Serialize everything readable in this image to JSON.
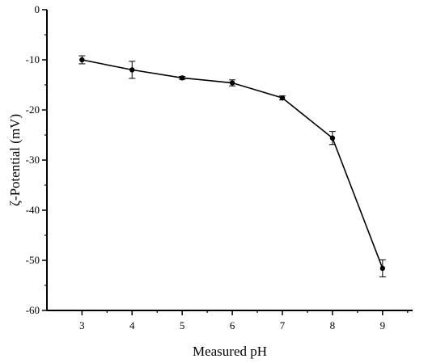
{
  "chart_data": {
    "type": "line",
    "title": "",
    "xlabel": "Measured pH",
    "ylabel": "ζ-Potential (mV)",
    "x": [
      3,
      4,
      5,
      6,
      7,
      8,
      9
    ],
    "series": [
      {
        "values": [
          -10.0,
          -12.0,
          -13.6,
          -14.6,
          -17.6,
          -25.6,
          -51.6
        ],
        "errors": [
          0.8,
          1.7,
          0.3,
          0.6,
          0.4,
          1.3,
          1.7
        ]
      }
    ],
    "xlim": [
      2.3,
      9.6
    ],
    "ylim": [
      -60,
      0
    ],
    "xticks": [
      3,
      4,
      5,
      6,
      7,
      8,
      9
    ],
    "yticks": [
      0,
      -10,
      -20,
      -30,
      -40,
      -50,
      -60
    ],
    "grid": false,
    "legend": "none",
    "line_color": "#000000",
    "marker_color": "#000000"
  }
}
